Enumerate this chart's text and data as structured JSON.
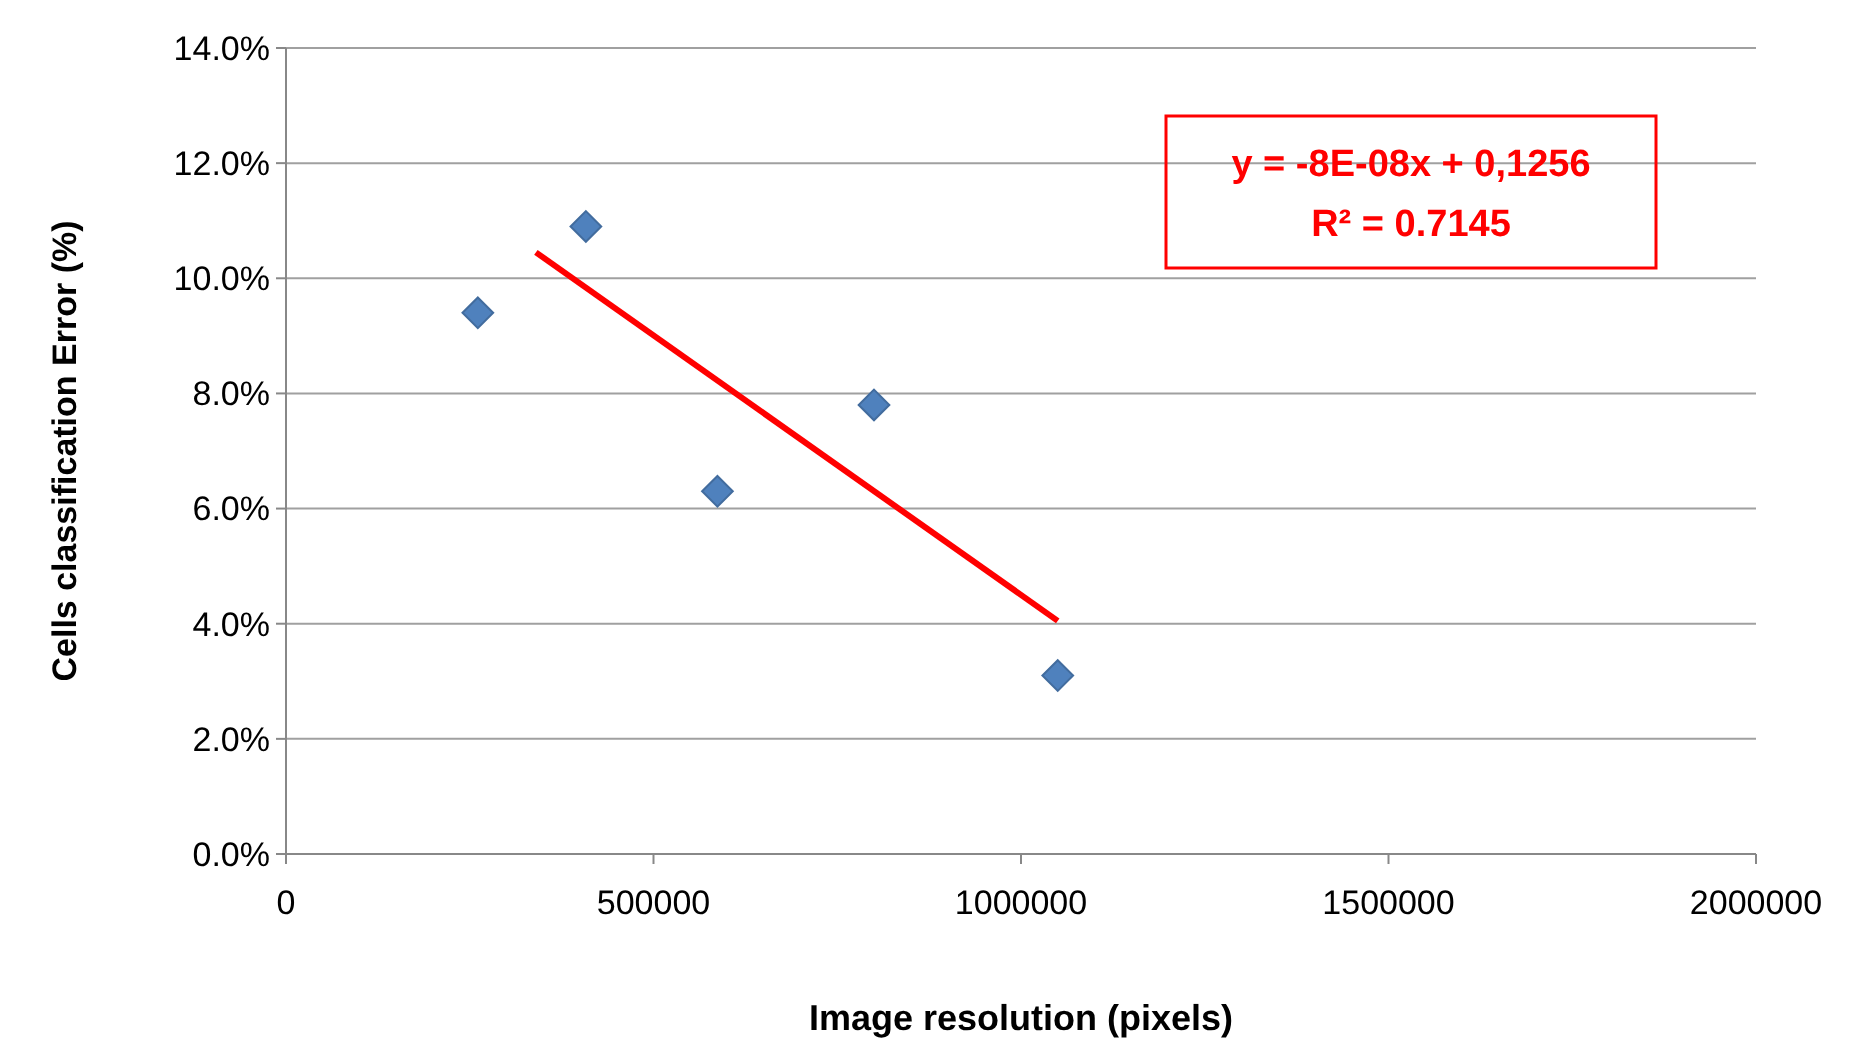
{
  "chart_data": {
    "type": "scatter",
    "xlabel": "Image resolution (pixels)",
    "ylabel": "Cells classification  Error (%)",
    "xlim": [
      0,
      2000000
    ],
    "xticks": [
      0,
      500000,
      1000000,
      1500000,
      2000000
    ],
    "ylim": [
      0,
      14
    ],
    "yticks": [
      {
        "value": 0,
        "label": "0.0%"
      },
      {
        "value": 2,
        "label": "2.0%"
      },
      {
        "value": 4,
        "label": "4.0%"
      },
      {
        "value": 6,
        "label": "6.0%"
      },
      {
        "value": 8,
        "label": "8.0%"
      },
      {
        "value": 10,
        "label": "10.0%"
      },
      {
        "value": 12,
        "label": "12.0%"
      },
      {
        "value": 14,
        "label": "14.0%"
      }
    ],
    "grid": "y",
    "marker": "diamond",
    "series": [
      {
        "type": "scatter",
        "color": "#4f81bd",
        "x": [
          261000,
          408000,
          587000,
          800000,
          1050000
        ],
        "values": [
          9.4,
          10.9,
          6.3,
          7.8,
          3.1
        ]
      },
      {
        "type": "line",
        "color": "#ff0000",
        "marker": "none",
        "line_style": "solid",
        "x": [
          340000,
          1050000
        ],
        "values": [
          10.45,
          4.05
        ]
      }
    ],
    "annotations": [
      "y = -8E-08x + 0,1256",
      "R² = 0.7145"
    ]
  }
}
